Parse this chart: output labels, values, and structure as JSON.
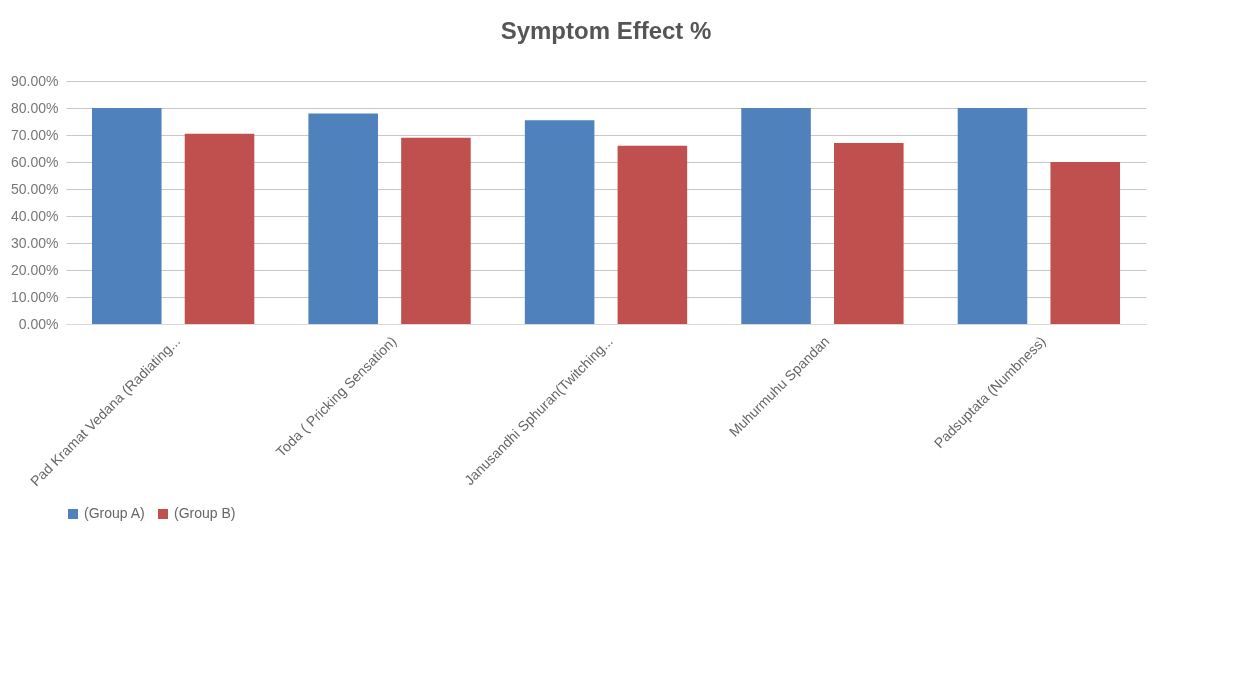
{
  "chart_data": {
    "type": "bar",
    "title": "Symptom Effect %",
    "categories": [
      "Pad Kramat Vedana (Radiating...",
      "Toda ( Pricking Sensation)",
      "Janusandhi Sphuran(Twitching...",
      "Muhurmuhu Spandan",
      "Padsuptata (Numbness)"
    ],
    "series": [
      {
        "name": "(Group A)",
        "color": "#4f81bd",
        "values": [
          80,
          78,
          75.5,
          80,
          80
        ]
      },
      {
        "name": "(Group B)",
        "color": "#c0504d",
        "values": [
          70.5,
          69,
          66,
          67,
          60
        ]
      }
    ],
    "ylim": [
      0,
      90
    ],
    "yticks": [
      {
        "value": 0,
        "label": "0.00%"
      },
      {
        "value": 10,
        "label": "10.00%"
      },
      {
        "value": 20,
        "label": "20.00%"
      },
      {
        "value": 30,
        "label": "30.00%"
      },
      {
        "value": 40,
        "label": "40.00%"
      },
      {
        "value": 50,
        "label": "50.00%"
      },
      {
        "value": 60,
        "label": "60.00%"
      },
      {
        "value": 70,
        "label": "70.00%"
      },
      {
        "value": 80,
        "label": "80.00%"
      },
      {
        "value": 90,
        "label": "90.00%"
      }
    ],
    "grid": "y",
    "legend": "bottom"
  }
}
